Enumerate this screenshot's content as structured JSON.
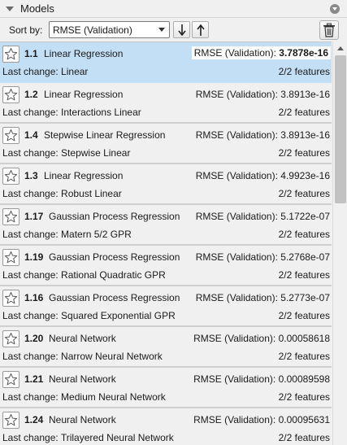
{
  "panel": {
    "title": "Models"
  },
  "toolbar": {
    "sort_label": "Sort by:",
    "sort_value": "RMSE (Validation)",
    "sort_desc_icon": "arrow-down-icon",
    "sort_asc_icon": "arrow-up-icon",
    "delete_icon": "trash-icon"
  },
  "colors": {
    "selected_row": "#c3dff5",
    "row_bg": "#f0f0f0",
    "row_separator": "#cfcfcf"
  },
  "models": [
    {
      "id": "1.1",
      "name": "Linear Regression",
      "metric_label": "RMSE (Validation):",
      "metric_value": "3.7878e-16",
      "last_change": "Last change: Linear",
      "features": "2/2 features",
      "selected": true
    },
    {
      "id": "1.2",
      "name": "Linear Regression",
      "metric_label": "RMSE (Validation):",
      "metric_value": "3.8913e-16",
      "last_change": "Last change: Interactions Linear",
      "features": "2/2 features",
      "selected": false
    },
    {
      "id": "1.4",
      "name": "Stepwise Linear Regression",
      "metric_label": "RMSE (Validation):",
      "metric_value": "3.8913e-16",
      "last_change": "Last change: Stepwise Linear",
      "features": "2/2 features",
      "selected": false
    },
    {
      "id": "1.3",
      "name": "Linear Regression",
      "metric_label": "RMSE (Validation):",
      "metric_value": "4.9923e-16",
      "last_change": "Last change: Robust Linear",
      "features": "2/2 features",
      "selected": false
    },
    {
      "id": "1.17",
      "name": "Gaussian Process Regression",
      "metric_label": "RMSE (Validation):",
      "metric_value": "5.1722e-07",
      "last_change": "Last change: Matern 5/2 GPR",
      "features": "2/2 features",
      "selected": false
    },
    {
      "id": "1.19",
      "name": "Gaussian Process Regression",
      "metric_label": "RMSE (Validation):",
      "metric_value": "5.2768e-07",
      "last_change": "Last change: Rational Quadratic GPR",
      "features": "2/2 features",
      "selected": false
    },
    {
      "id": "1.16",
      "name": "Gaussian Process Regression",
      "metric_label": "RMSE (Validation):",
      "metric_value": "5.2773e-07",
      "last_change": "Last change: Squared Exponential GPR",
      "features": "2/2 features",
      "selected": false
    },
    {
      "id": "1.20",
      "name": "Neural Network",
      "metric_label": "RMSE (Validation):",
      "metric_value": "0.00058618",
      "last_change": "Last change: Narrow Neural Network",
      "features": "2/2 features",
      "selected": false
    },
    {
      "id": "1.21",
      "name": "Neural Network",
      "metric_label": "RMSE (Validation):",
      "metric_value": "0.00089598",
      "last_change": "Last change: Medium Neural Network",
      "features": "2/2 features",
      "selected": false
    },
    {
      "id": "1.24",
      "name": "Neural Network",
      "metric_label": "RMSE (Validation):",
      "metric_value": "0.00095631",
      "last_change": "Last change: Trilayered Neural Network",
      "features": "2/2 features",
      "selected": false
    }
  ]
}
